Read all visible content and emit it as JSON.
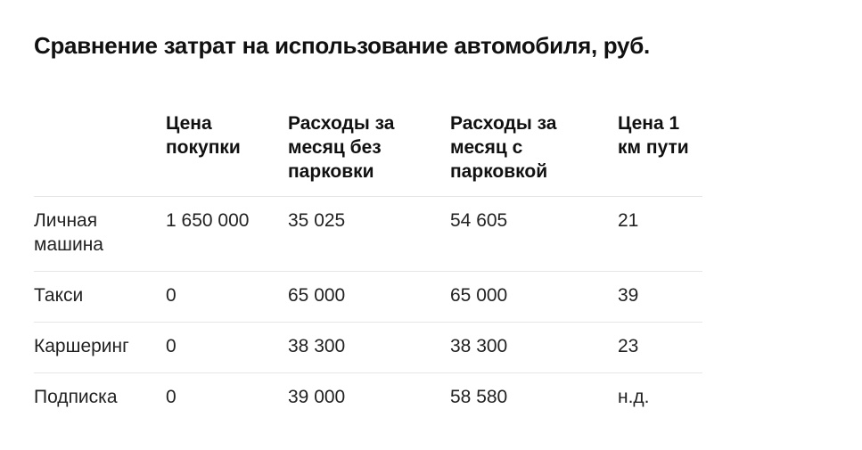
{
  "title": "Сравнение затрат на использование автомобиля, руб.",
  "table": {
    "headers": [
      "",
      "Цена покупки",
      "Расходы за месяц без парковки",
      "Расходы за месяц с парковкой",
      "Цена 1 км пути"
    ],
    "rows": [
      [
        "Личная машина",
        "1 650 000",
        "35 025",
        "54 605",
        "21"
      ],
      [
        "Такси",
        "0",
        "65 000",
        "65 000",
        "39"
      ],
      [
        "Каршеринг",
        "0",
        "38 300",
        "38 300",
        "23"
      ],
      [
        "Подписка",
        "0",
        "39 000",
        "58 580",
        "н.д."
      ]
    ]
  }
}
